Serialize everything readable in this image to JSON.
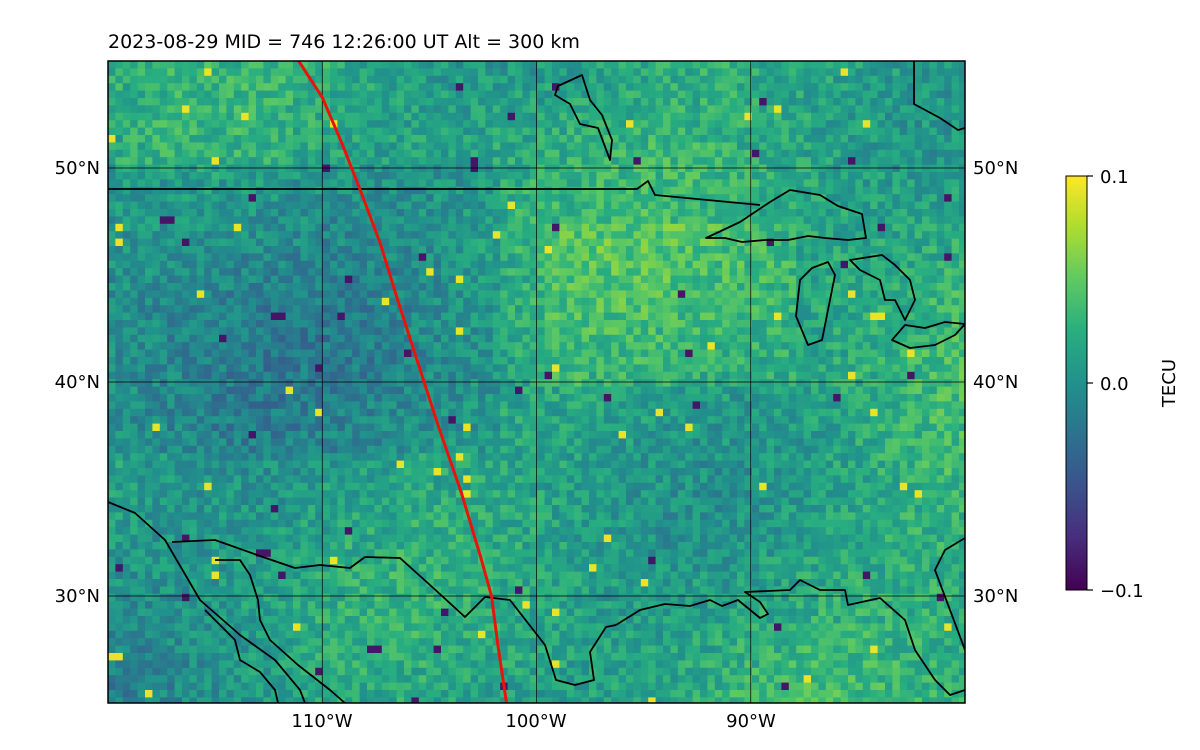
{
  "header": {
    "title": "2023-08-29  MID = 746    12:26:00  UT  Alt = 300 km"
  },
  "map": {
    "lon_range": [
      -120,
      -80
    ],
    "lat_range": [
      25,
      55
    ],
    "lat_ticks": [
      {
        "value": 50,
        "label": "50°N"
      },
      {
        "value": 40,
        "label": "40°N"
      },
      {
        "value": 30,
        "label": "30°N"
      }
    ],
    "lon_ticks": [
      {
        "value": -110,
        "label": "110°W"
      },
      {
        "value": -100,
        "label": "100°W"
      },
      {
        "value": -90,
        "label": "90°W"
      }
    ],
    "track_color": "#e8140c",
    "track": [
      [
        -111.1,
        55
      ],
      [
        -110.0,
        53.3
      ],
      [
        -109.1,
        51.2
      ],
      [
        -108.2,
        48.9
      ],
      [
        -107.3,
        46.5
      ],
      [
        -106.5,
        43.9
      ],
      [
        -105.6,
        41.1
      ],
      [
        -104.6,
        38.0
      ],
      [
        -103.5,
        34.8
      ],
      [
        -102.6,
        31.8
      ],
      [
        -102.1,
        30.0
      ],
      [
        -101.8,
        27.7
      ],
      [
        -101.4,
        25.0
      ]
    ],
    "coastline_color": "#000000"
  },
  "colorbar": {
    "label": "TECU",
    "min": -0.1,
    "max": 0.1,
    "ticks": [
      {
        "value": 0.1,
        "label": "0.1"
      },
      {
        "value": 0.0,
        "label": "0.0"
      },
      {
        "value": -0.1,
        "label": "−0.1"
      }
    ],
    "colormap": "viridis"
  }
}
